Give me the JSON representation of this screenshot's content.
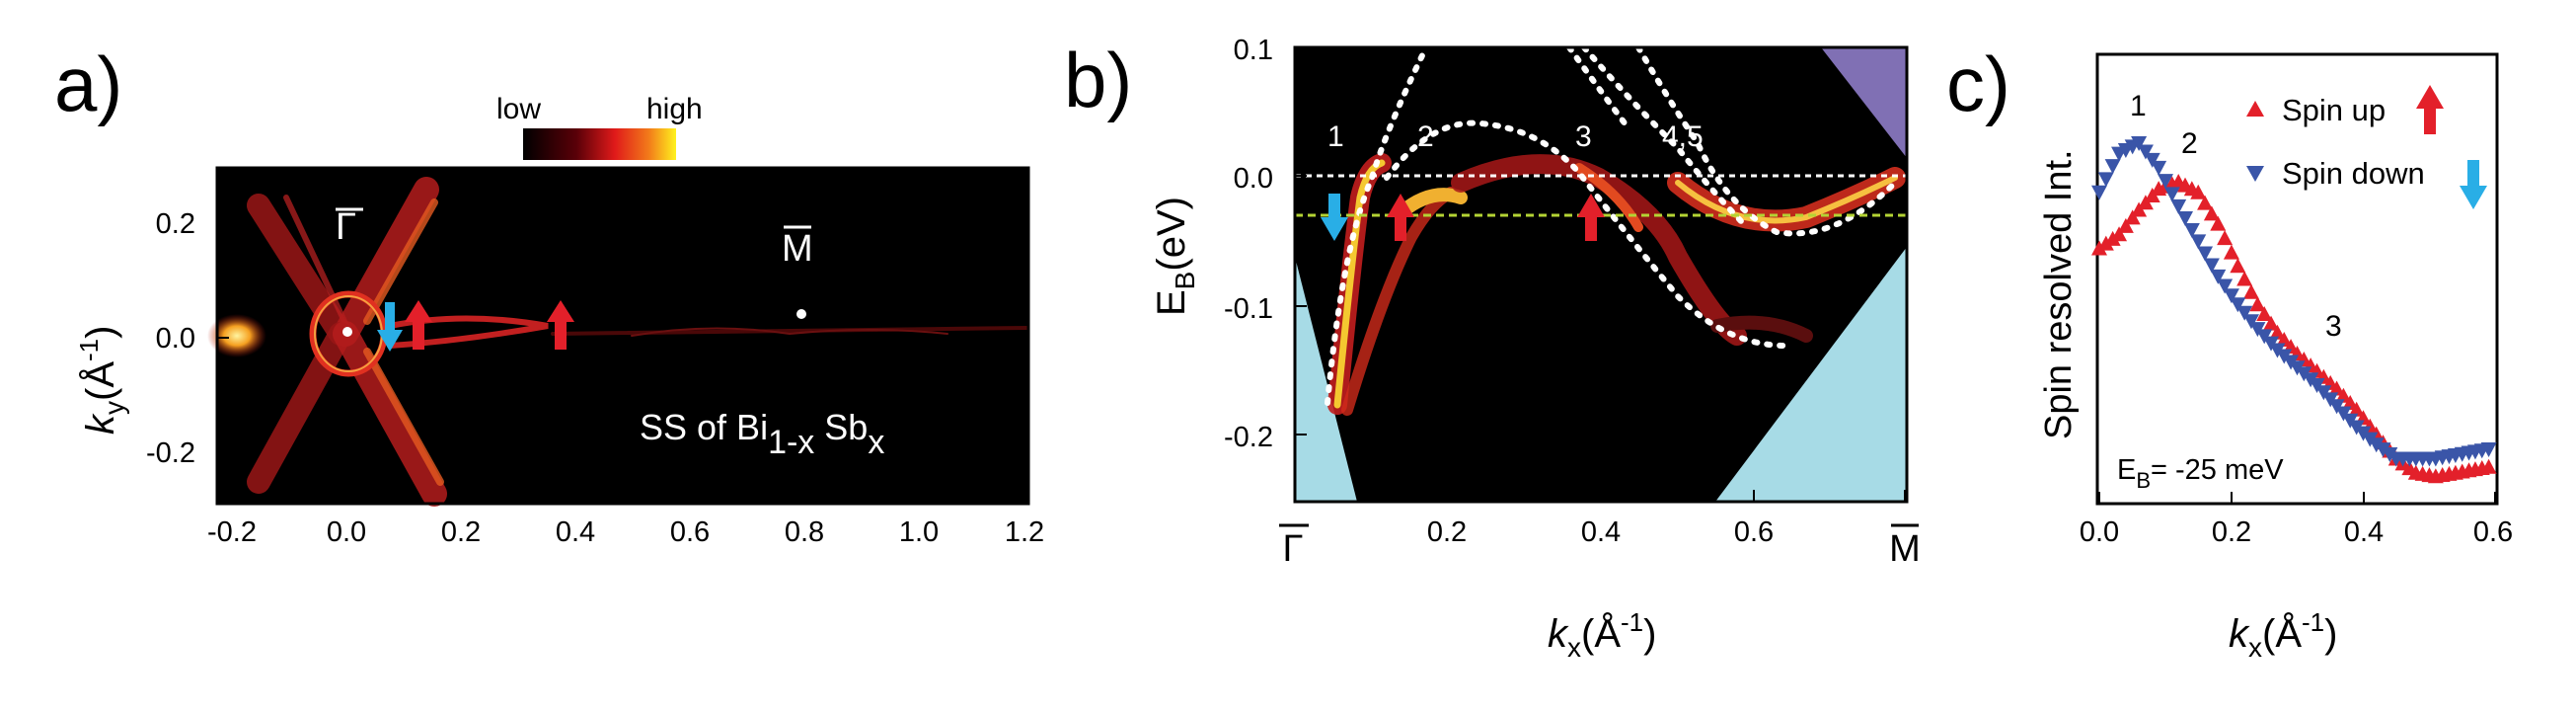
{
  "panels": [
    {
      "id": "a",
      "letter": "a)",
      "colorbar": {
        "low_label": "low",
        "high_label": "high"
      },
      "ylabel_k": "k",
      "ylabel_sub": "y",
      "ylabel_unit": "(Å",
      "ylabel_sup": "-1",
      "ylabel_close": ")",
      "point_gamma": "Γ",
      "point_m": "M",
      "annotation_main": "SS of Bi",
      "annotation_sub1": "1-x",
      "annotation_sb": " Sb",
      "annotation_sub2": "x",
      "xticks": [
        "-0.2",
        "0.0",
        "0.2",
        "0.4",
        "0.6",
        "0.8",
        "1.0",
        "1.2"
      ],
      "yticks": [
        "0.2",
        "0.0",
        "-0.2"
      ]
    },
    {
      "id": "b",
      "letter": "b)",
      "ylabel": "E",
      "ylabel_sub": "B",
      "ylabel_unit": "(eV)",
      "xlabel_k": "k",
      "xlabel_sub": "x",
      "xlabel_unit": "(Å",
      "xlabel_sup": "-1",
      "xlabel_close": ")",
      "xticks": [
        "Γ",
        "0.2",
        "0.4",
        "0.6",
        "M"
      ],
      "yticks": [
        "0.1",
        "0.0",
        "-0.1",
        "-0.2"
      ],
      "band_labels": [
        "1",
        "2",
        "3",
        "4,5"
      ]
    },
    {
      "id": "c",
      "letter": "c)",
      "ylabel": "Spin resolved Int.",
      "xlabel_k": "k",
      "xlabel_sub": "x",
      "xlabel_unit": "(Å",
      "xlabel_sup": "-1",
      "xlabel_close": ")",
      "xticks": [
        "0.0",
        "0.2",
        "0.4",
        "0.6"
      ],
      "peak_labels": [
        "1",
        "2",
        "3"
      ],
      "energy_label_e": "E",
      "energy_label_sub": "B",
      "energy_label_rest": "= -25 meV"
    }
  ],
  "chart_data": {
    "type": "scatter",
    "xlabel": "kx (Å-1)",
    "ylabel": "Spin resolved Int.",
    "xlim": [
      0,
      0.6
    ],
    "series": [
      {
        "name": "Spin up",
        "color": "#e3202a",
        "x": [
          0.0,
          0.03,
          0.06,
          0.09,
          0.12,
          0.15,
          0.18,
          0.21,
          0.24,
          0.27,
          0.3,
          0.33,
          0.36,
          0.39,
          0.42,
          0.45,
          0.48,
          0.51,
          0.54,
          0.57,
          0.6
        ],
        "y": [
          0.7,
          0.74,
          0.81,
          0.87,
          0.89,
          0.86,
          0.77,
          0.65,
          0.54,
          0.46,
          0.4,
          0.35,
          0.3,
          0.24,
          0.17,
          0.1,
          0.06,
          0.05,
          0.06,
          0.07,
          0.08
        ]
      },
      {
        "name": "Spin down",
        "color": "#3a55a8",
        "x": [
          0.0,
          0.03,
          0.06,
          0.09,
          0.12,
          0.15,
          0.18,
          0.21,
          0.24,
          0.27,
          0.3,
          0.33,
          0.36,
          0.39,
          0.42,
          0.45,
          0.48,
          0.51,
          0.54,
          0.57,
          0.6
        ],
        "y": [
          0.86,
          0.97,
          1.0,
          0.93,
          0.82,
          0.72,
          0.62,
          0.54,
          0.47,
          0.41,
          0.36,
          0.31,
          0.25,
          0.19,
          0.14,
          0.1,
          0.1,
          0.1,
          0.11,
          0.12,
          0.13
        ]
      }
    ]
  },
  "colors": {
    "spin_up": "#e3202a",
    "spin_down": "#29aee6",
    "spin_down_markers": "#3a55a8",
    "lightblue": "#a7dbe6",
    "violet": "#8070b4",
    "fermi_green": "#b4d334"
  }
}
